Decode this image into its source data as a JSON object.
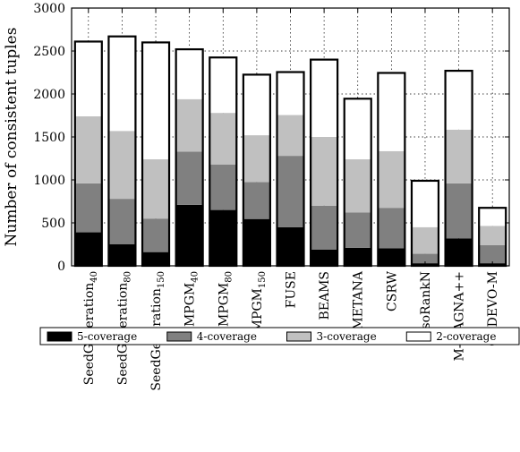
{
  "chart_data": {
    "type": "bar",
    "stacked": true,
    "title": "",
    "xlabel": "",
    "ylabel": "Number of consistent tuples",
    "ylim": [
      0,
      3000
    ],
    "yticks": [
      0,
      500,
      1000,
      1500,
      2000,
      2500,
      3000
    ],
    "grid": true,
    "legend_position": "bottom",
    "categories": [
      {
        "base": "SeedGeneration",
        "sub": "40"
      },
      {
        "base": "SeedGeneration",
        "sub": "80"
      },
      {
        "base": "SeedGeneration",
        "sub": "150"
      },
      {
        "base": "MPGM",
        "sub": "40"
      },
      {
        "base": "MPGM",
        "sub": "80"
      },
      {
        "base": "MPGM",
        "sub": "150"
      },
      {
        "base": "FUSE",
        "sub": ""
      },
      {
        "base": "BEAMS",
        "sub": ""
      },
      {
        "base": "SMETANA",
        "sub": ""
      },
      {
        "base": "CSRW",
        "sub": ""
      },
      {
        "base": "IsoRankN",
        "sub": ""
      },
      {
        "base": "M-MAGNA++",
        "sub": ""
      },
      {
        "base": "GEDEVO-M",
        "sub": ""
      }
    ],
    "series": [
      {
        "name": "5-coverage",
        "color": "#000000",
        "values": [
          390,
          250,
          160,
          710,
          650,
          545,
          450,
          190,
          210,
          205,
          30,
          320,
          30
        ]
      },
      {
        "name": "4-coverage",
        "color": "#808080",
        "values": [
          570,
          530,
          390,
          620,
          530,
          430,
          830,
          510,
          410,
          470,
          110,
          640,
          210
        ]
      },
      {
        "name": "3-coverage",
        "color": "#c0c0c0",
        "values": [
          780,
          790,
          690,
          610,
          600,
          545,
          475,
          800,
          620,
          660,
          310,
          625,
          225
        ]
      },
      {
        "name": "2-coverage",
        "color": "#ffffff",
        "values": [
          870,
          1100,
          1360,
          580,
          645,
          705,
          500,
          900,
          705,
          910,
          540,
          685,
          210
        ]
      }
    ]
  }
}
